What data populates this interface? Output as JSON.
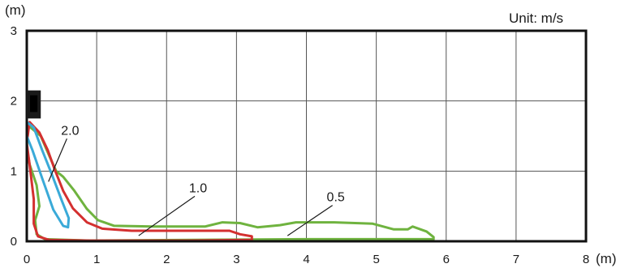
{
  "chart_data": {
    "type": "line",
    "title": "",
    "unit_note": "Unit: m/s",
    "xlabel": "(m)",
    "ylabel": "(m)",
    "xlim": [
      0,
      8
    ],
    "ylim": [
      0,
      3
    ],
    "grid": true,
    "x_ticks": [
      "0",
      "1",
      "2",
      "3",
      "4",
      "5",
      "6",
      "7",
      "8"
    ],
    "y_ticks": [
      "0",
      "1",
      "2",
      "3"
    ],
    "outlet": {
      "x": [
        0,
        0.2
      ],
      "y": [
        1.75,
        2.15
      ],
      "color": "#1a1a1a"
    },
    "series": [
      {
        "name": "2.0",
        "color": "#3aaad8",
        "points": [
          [
            0.0,
            1.7
          ],
          [
            0.1,
            1.62
          ],
          [
            0.22,
            1.3
          ],
          [
            0.36,
            0.95
          ],
          [
            0.5,
            0.58
          ],
          [
            0.6,
            0.33
          ],
          [
            0.59,
            0.2
          ],
          [
            0.52,
            0.22
          ],
          [
            0.38,
            0.45
          ],
          [
            0.22,
            0.9
          ],
          [
            0.08,
            1.3
          ],
          [
            0.0,
            1.5
          ],
          [
            0.0,
            1.7
          ]
        ]
      },
      {
        "name": "1.0",
        "color": "#d43030",
        "points": [
          [
            0.04,
            1.7
          ],
          [
            0.18,
            1.55
          ],
          [
            0.3,
            1.3
          ],
          [
            0.4,
            1.02
          ],
          [
            0.52,
            0.72
          ],
          [
            0.66,
            0.47
          ],
          [
            0.86,
            0.27
          ],
          [
            1.08,
            0.18
          ],
          [
            1.5,
            0.15
          ],
          [
            2.9,
            0.15
          ],
          [
            3.05,
            0.1
          ],
          [
            3.22,
            0.07
          ],
          [
            3.22,
            0.02
          ],
          [
            2.3,
            0.01
          ],
          [
            0.9,
            0.01
          ],
          [
            0.32,
            0.02
          ],
          [
            0.16,
            0.07
          ],
          [
            0.1,
            0.25
          ],
          [
            0.1,
            0.6
          ],
          [
            0.04,
            1.1
          ],
          [
            0.0,
            1.4
          ],
          [
            0.04,
            1.7
          ]
        ]
      },
      {
        "name": "0.5",
        "color": "#6fb33f",
        "points": [
          [
            0.02,
            1.65
          ],
          [
            0.2,
            1.5
          ],
          [
            0.33,
            1.2
          ],
          [
            0.42,
            1.0
          ],
          [
            0.52,
            0.92
          ],
          [
            0.68,
            0.72
          ],
          [
            0.86,
            0.46
          ],
          [
            1.02,
            0.3
          ],
          [
            1.25,
            0.22
          ],
          [
            1.8,
            0.21
          ],
          [
            2.55,
            0.21
          ],
          [
            2.8,
            0.27
          ],
          [
            3.05,
            0.26
          ],
          [
            3.3,
            0.2
          ],
          [
            3.62,
            0.23
          ],
          [
            3.85,
            0.27
          ],
          [
            4.4,
            0.27
          ],
          [
            4.95,
            0.25
          ],
          [
            5.25,
            0.17
          ],
          [
            5.45,
            0.17
          ],
          [
            5.52,
            0.21
          ],
          [
            5.72,
            0.14
          ],
          [
            5.82,
            0.06
          ],
          [
            5.82,
            0.03
          ],
          [
            4.0,
            0.03
          ],
          [
            0.9,
            0.01
          ],
          [
            0.26,
            0.03
          ],
          [
            0.14,
            0.1
          ],
          [
            0.12,
            0.3
          ],
          [
            0.18,
            0.5
          ],
          [
            0.14,
            0.8
          ],
          [
            0.04,
            1.1
          ],
          [
            0.0,
            1.35
          ],
          [
            0.02,
            1.65
          ]
        ]
      }
    ],
    "contour_labels": [
      {
        "text": "2.0",
        "x": 0.62,
        "y": 1.52,
        "pointer_to": [
          0.31,
          0.85
        ]
      },
      {
        "text": "1.0",
        "x": 2.45,
        "y": 0.7,
        "pointer_to": [
          1.6,
          0.08
        ]
      },
      {
        "text": "0.5",
        "x": 4.42,
        "y": 0.57,
        "pointer_to": [
          3.73,
          0.08
        ]
      }
    ]
  }
}
